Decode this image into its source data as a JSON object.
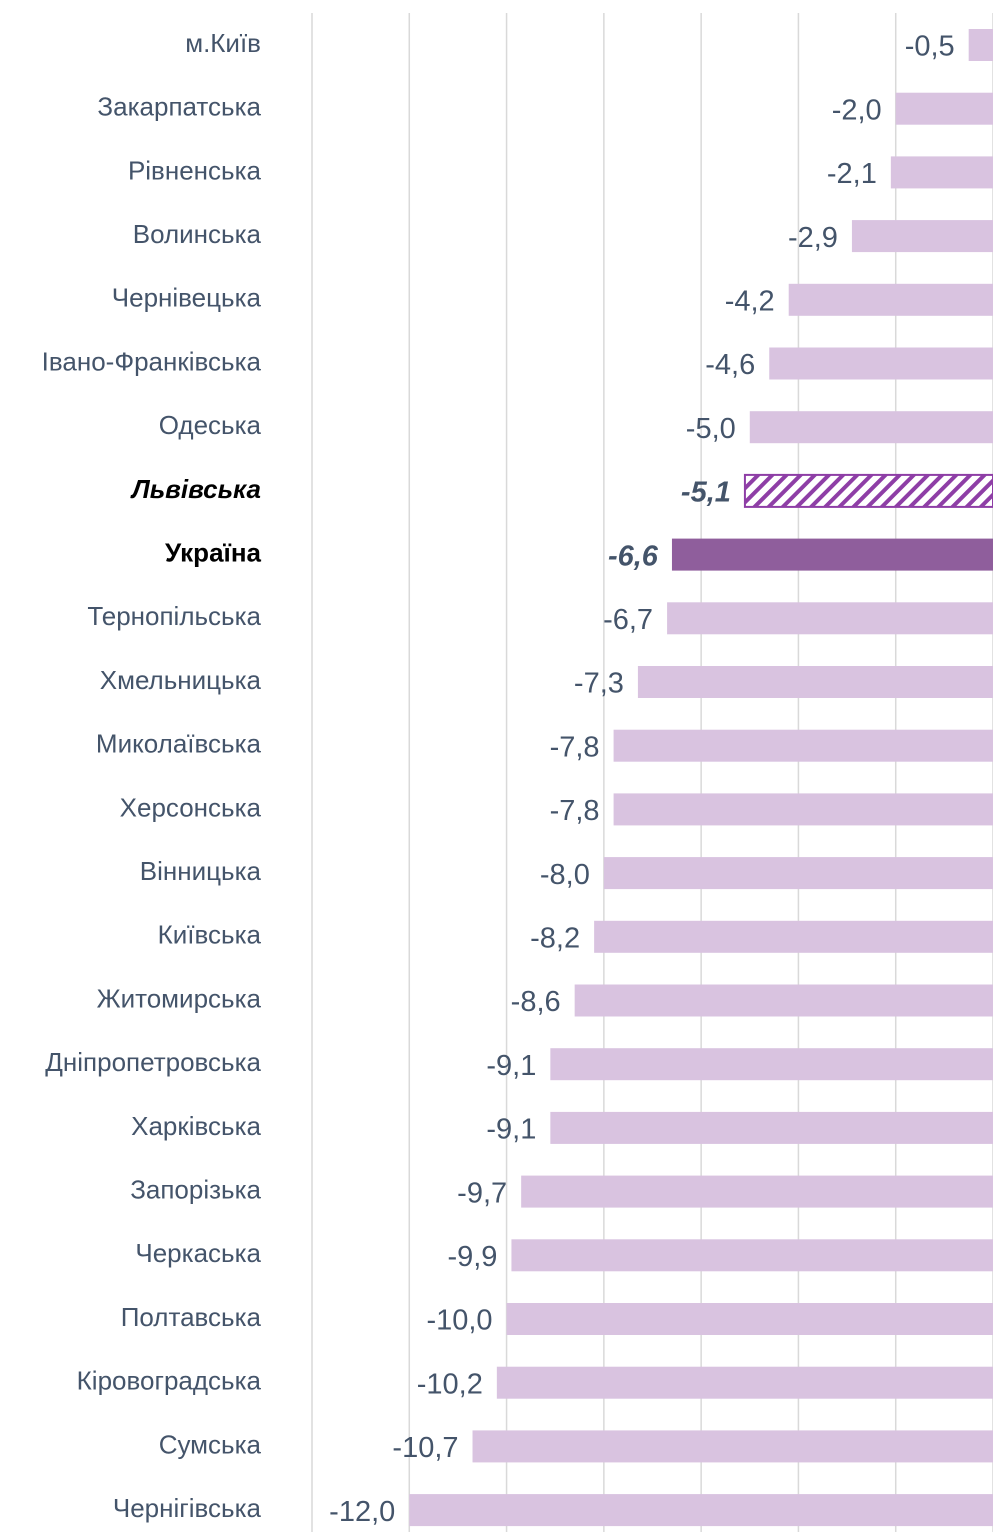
{
  "chart_data": {
    "type": "barh",
    "categories": [
      "м.Київ",
      "Закарпатська",
      "Рівненська",
      "Волинська",
      "Чернівецька",
      "Івано-Франківська",
      "Одеська",
      "Львівська",
      "Україна",
      "Тернопільська",
      "Хмельницька",
      "Миколаївська",
      "Херсонська",
      "Вінницька",
      "Київська",
      "Житомирська",
      "Дніпропетровська",
      "Харківська",
      "Запорізька",
      "Черкаська",
      "Полтавська",
      "Кіровоградська",
      "Сумська",
      "Чернігівська"
    ],
    "values": [
      -0.5,
      -2.0,
      -2.1,
      -2.9,
      -4.2,
      -4.6,
      -5.0,
      -5.1,
      -6.6,
      -6.7,
      -7.3,
      -7.8,
      -7.8,
      -8.0,
      -8.2,
      -8.6,
      -9.1,
      -9.1,
      -9.7,
      -9.9,
      -10.0,
      -10.2,
      -10.7,
      -12.0
    ],
    "value_labels": [
      "-0,5",
      "-2,0",
      "-2,1",
      "-2,9",
      "-4,2",
      "-4,6",
      "-5,0",
      "-5,1",
      "-6,6",
      "-6,7",
      "-7,3",
      "-7,8",
      "-7,8",
      "-8,0",
      "-8,2",
      "-8,6",
      "-9,1",
      "-9,1",
      "-9,7",
      "-9,9",
      "-10,0",
      "-10,2",
      "-10,7",
      "-12,0"
    ],
    "colors": [
      "#d9c3e0",
      "#d9c3e0",
      "#d9c3e0",
      "#d9c3e0",
      "#d9c3e0",
      "#d9c3e0",
      "#d9c3e0",
      "#8e3ea6",
      "#8f5e9c",
      "#d9c3e0",
      "#d9c3e0",
      "#d9c3e0",
      "#d9c3e0",
      "#d9c3e0",
      "#d9c3e0",
      "#d9c3e0",
      "#d9c3e0",
      "#d9c3e0",
      "#d9c3e0",
      "#d9c3e0",
      "#d9c3e0",
      "#d9c3e0",
      "#d9c3e0",
      "#d9c3e0"
    ],
    "hatched": [
      7
    ],
    "bold": [
      7,
      8
    ],
    "italic": [
      7
    ],
    "xlim": [
      -14,
      0
    ],
    "xticks": [
      -14,
      -12,
      -10,
      -8,
      -6,
      -4,
      -2,
      0
    ],
    "grid": true
  }
}
